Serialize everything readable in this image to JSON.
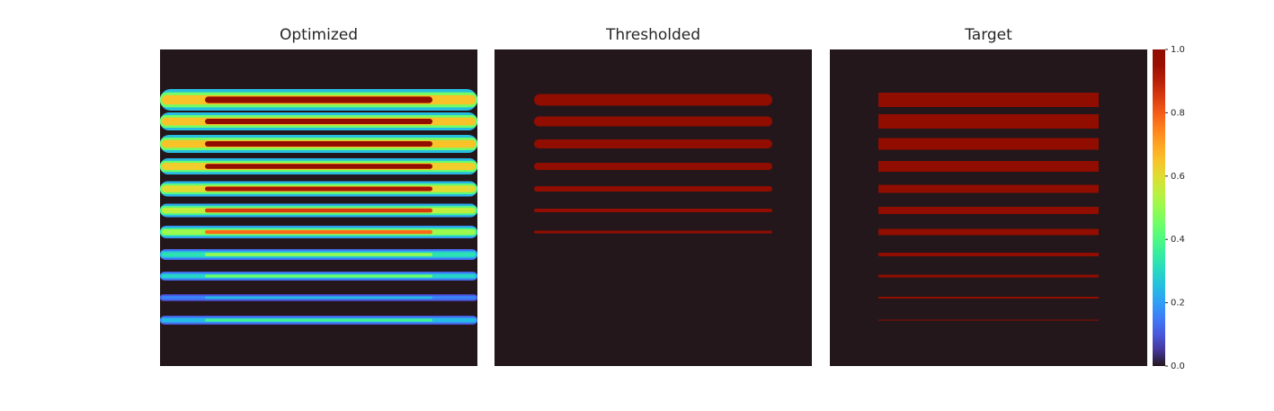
{
  "chart_data": [
    {
      "type": "heatmap",
      "title": "Optimized",
      "values": [
        1.0,
        1.0,
        1.0,
        0.97,
        0.93,
        0.85,
        0.78,
        0.5,
        0.45,
        0.25,
        0.38
      ]
    },
    {
      "type": "heatmap",
      "title": "Thresholded",
      "values": [
        1,
        1,
        1,
        1,
        1,
        1,
        1
      ]
    },
    {
      "type": "heatmap",
      "title": "Target",
      "values": [
        1,
        1,
        1,
        1,
        1,
        1,
        1,
        1,
        1,
        1,
        1
      ]
    }
  ],
  "colorbar": {
    "colormap": "turbo",
    "clim": [
      0,
      1
    ],
    "ticks": [
      {
        "value": 0,
        "label": "0.0"
      },
      {
        "value": 0.2,
        "label": "0.2"
      },
      {
        "value": 0.4,
        "label": "0.4"
      },
      {
        "value": 0.6,
        "label": "0.6"
      },
      {
        "value": 0.8,
        "label": "0.8"
      },
      {
        "value": 1,
        "label": "1.0"
      }
    ]
  }
}
